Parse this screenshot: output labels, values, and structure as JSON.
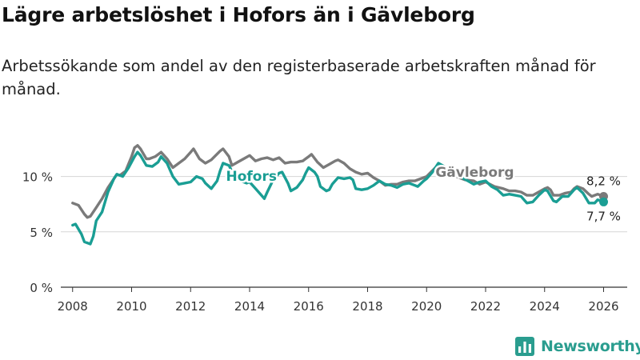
{
  "header": {
    "title": "Lägre arbetslöshet i Hofors än i Gävleborg",
    "subtitle": "Arbetssökande som andel av den registerbaserade arbetskraften månad för månad."
  },
  "brand": {
    "name": "Newsworthy"
  },
  "colors": {
    "hofors": "#1a9e94",
    "gavleborg": "#7a7a7a",
    "brand": "#2a9d8f",
    "grid": "#d6d6d6"
  },
  "chart_data": {
    "type": "line",
    "title": "Lägre arbetslöshet i Hofors än i Gävleborg",
    "xlabel": "",
    "ylabel": "",
    "xlim": [
      2007.6,
      2026.8
    ],
    "ylim": [
      0,
      12.5
    ],
    "x_ticks": [
      {
        "value": 2008,
        "label": "2008"
      },
      {
        "value": 2010,
        "label": "2010"
      },
      {
        "value": 2012,
        "label": "2012"
      },
      {
        "value": 2014,
        "label": "2014"
      },
      {
        "value": 2016,
        "label": "2016"
      },
      {
        "value": 2018,
        "label": "2018"
      },
      {
        "value": 2020,
        "label": "2020"
      },
      {
        "value": 2022,
        "label": "2022"
      },
      {
        "value": 2024,
        "label": "2024"
      },
      {
        "value": 2026,
        "label": "2026"
      }
    ],
    "y_ticks": [
      {
        "value": 0,
        "label": "0 %"
      },
      {
        "value": 5,
        "label": "5 %"
      },
      {
        "value": 10,
        "label": "10 %"
      }
    ],
    "series": [
      {
        "name": "Gävleborg",
        "key": "gavleborg",
        "end_label": "8,2 %",
        "points": [
          [
            2008.0,
            7.6
          ],
          [
            2008.2,
            7.4
          ],
          [
            2008.4,
            6.6
          ],
          [
            2008.5,
            6.3
          ],
          [
            2008.6,
            6.4
          ],
          [
            2008.8,
            7.2
          ],
          [
            2009.0,
            8.0
          ],
          [
            2009.2,
            9.0
          ],
          [
            2009.4,
            9.8
          ],
          [
            2009.5,
            10.2
          ],
          [
            2009.6,
            10.1
          ],
          [
            2009.8,
            10.5
          ],
          [
            2010.0,
            11.8
          ],
          [
            2010.1,
            12.6
          ],
          [
            2010.2,
            12.8
          ],
          [
            2010.3,
            12.5
          ],
          [
            2010.5,
            11.6
          ],
          [
            2010.6,
            11.6
          ],
          [
            2010.8,
            11.8
          ],
          [
            2011.0,
            12.2
          ],
          [
            2011.2,
            11.6
          ],
          [
            2011.4,
            10.8
          ],
          [
            2011.6,
            11.2
          ],
          [
            2011.8,
            11.6
          ],
          [
            2012.0,
            12.2
          ],
          [
            2012.1,
            12.5
          ],
          [
            2012.3,
            11.6
          ],
          [
            2012.5,
            11.2
          ],
          [
            2012.7,
            11.5
          ],
          [
            2013.0,
            12.3
          ],
          [
            2013.1,
            12.5
          ],
          [
            2013.3,
            11.8
          ],
          [
            2013.4,
            11.0
          ],
          [
            2013.6,
            11.3
          ],
          [
            2013.8,
            11.6
          ],
          [
            2014.0,
            11.9
          ],
          [
            2014.2,
            11.4
          ],
          [
            2014.4,
            11.6
          ],
          [
            2014.6,
            11.7
          ],
          [
            2014.8,
            11.5
          ],
          [
            2015.0,
            11.7
          ],
          [
            2015.2,
            11.2
          ],
          [
            2015.4,
            11.3
          ],
          [
            2015.6,
            11.3
          ],
          [
            2015.8,
            11.4
          ],
          [
            2016.0,
            11.8
          ],
          [
            2016.1,
            12.0
          ],
          [
            2016.3,
            11.3
          ],
          [
            2016.5,
            10.8
          ],
          [
            2016.7,
            11.1
          ],
          [
            2016.9,
            11.4
          ],
          [
            2017.0,
            11.5
          ],
          [
            2017.2,
            11.2
          ],
          [
            2017.4,
            10.7
          ],
          [
            2017.6,
            10.4
          ],
          [
            2017.8,
            10.2
          ],
          [
            2018.0,
            10.3
          ],
          [
            2018.2,
            9.9
          ],
          [
            2018.4,
            9.6
          ],
          [
            2018.6,
            9.2
          ],
          [
            2018.8,
            9.3
          ],
          [
            2019.0,
            9.3
          ],
          [
            2019.2,
            9.5
          ],
          [
            2019.4,
            9.6
          ],
          [
            2019.6,
            9.6
          ],
          [
            2019.8,
            9.8
          ],
          [
            2020.0,
            10.0
          ],
          [
            2020.3,
            10.8
          ],
          [
            2020.5,
            10.6
          ],
          [
            2020.8,
            10.3
          ],
          [
            2021.0,
            10.0
          ],
          [
            2021.3,
            9.7
          ],
          [
            2021.6,
            9.6
          ],
          [
            2021.8,
            9.3
          ],
          [
            2022.0,
            9.5
          ],
          [
            2022.3,
            9.1
          ],
          [
            2022.6,
            8.9
          ],
          [
            2022.8,
            8.7
          ],
          [
            2023.0,
            8.7
          ],
          [
            2023.2,
            8.6
          ],
          [
            2023.4,
            8.3
          ],
          [
            2023.6,
            8.3
          ],
          [
            2023.8,
            8.6
          ],
          [
            2024.0,
            8.9
          ],
          [
            2024.1,
            9.0
          ],
          [
            2024.2,
            8.8
          ],
          [
            2024.3,
            8.3
          ],
          [
            2024.5,
            8.3
          ],
          [
            2024.7,
            8.5
          ],
          [
            2024.9,
            8.6
          ],
          [
            2025.0,
            8.9
          ],
          [
            2025.1,
            9.1
          ],
          [
            2025.3,
            8.9
          ],
          [
            2025.5,
            8.4
          ],
          [
            2025.6,
            8.2
          ],
          [
            2025.8,
            8.4
          ],
          [
            2026.0,
            8.2
          ]
        ]
      },
      {
        "name": "Hofors",
        "key": "hofors",
        "end_label": "7,7 %",
        "points": [
          [
            2008.0,
            5.6
          ],
          [
            2008.1,
            5.7
          ],
          [
            2008.3,
            4.8
          ],
          [
            2008.4,
            4.1
          ],
          [
            2008.6,
            3.9
          ],
          [
            2008.7,
            4.6
          ],
          [
            2008.8,
            6.0
          ],
          [
            2009.0,
            6.8
          ],
          [
            2009.2,
            8.6
          ],
          [
            2009.4,
            9.8
          ],
          [
            2009.5,
            10.2
          ],
          [
            2009.7,
            10.0
          ],
          [
            2009.9,
            10.8
          ],
          [
            2010.1,
            11.8
          ],
          [
            2010.2,
            12.2
          ],
          [
            2010.3,
            11.9
          ],
          [
            2010.5,
            11.0
          ],
          [
            2010.7,
            10.9
          ],
          [
            2010.9,
            11.3
          ],
          [
            2011.0,
            11.8
          ],
          [
            2011.2,
            11.2
          ],
          [
            2011.4,
            10.0
          ],
          [
            2011.6,
            9.3
          ],
          [
            2011.8,
            9.4
          ],
          [
            2012.0,
            9.5
          ],
          [
            2012.2,
            10.0
          ],
          [
            2012.4,
            9.8
          ],
          [
            2012.5,
            9.4
          ],
          [
            2012.7,
            8.9
          ],
          [
            2012.9,
            9.6
          ],
          [
            2013.0,
            10.5
          ],
          [
            2013.1,
            11.2
          ],
          [
            2013.3,
            11.0
          ],
          [
            2013.5,
            9.9
          ],
          [
            2013.7,
            9.6
          ],
          [
            2013.9,
            9.4
          ],
          [
            2014.0,
            9.5
          ],
          [
            2014.2,
            8.9
          ],
          [
            2014.4,
            8.3
          ],
          [
            2014.5,
            8.0
          ],
          [
            2014.6,
            8.6
          ],
          [
            2014.8,
            9.7
          ],
          [
            2015.0,
            10.3
          ],
          [
            2015.1,
            10.4
          ],
          [
            2015.3,
            9.4
          ],
          [
            2015.4,
            8.7
          ],
          [
            2015.6,
            9.0
          ],
          [
            2015.8,
            9.7
          ],
          [
            2015.9,
            10.3
          ],
          [
            2016.0,
            10.8
          ],
          [
            2016.2,
            10.4
          ],
          [
            2016.3,
            10.0
          ],
          [
            2016.4,
            9.1
          ],
          [
            2016.6,
            8.7
          ],
          [
            2016.7,
            8.8
          ],
          [
            2016.8,
            9.3
          ],
          [
            2017.0,
            9.9
          ],
          [
            2017.2,
            9.8
          ],
          [
            2017.4,
            9.9
          ],
          [
            2017.5,
            9.7
          ],
          [
            2017.6,
            8.9
          ],
          [
            2017.8,
            8.8
          ],
          [
            2018.0,
            8.9
          ],
          [
            2018.2,
            9.2
          ],
          [
            2018.4,
            9.6
          ],
          [
            2018.6,
            9.3
          ],
          [
            2018.8,
            9.2
          ],
          [
            2019.0,
            9.0
          ],
          [
            2019.2,
            9.3
          ],
          [
            2019.4,
            9.4
          ],
          [
            2019.6,
            9.2
          ],
          [
            2019.7,
            9.1
          ],
          [
            2019.9,
            9.6
          ],
          [
            2020.0,
            9.8
          ],
          [
            2020.2,
            10.4
          ],
          [
            2020.4,
            11.2
          ],
          [
            2020.6,
            10.9
          ],
          [
            2020.8,
            10.4
          ],
          [
            2021.0,
            10.2
          ],
          [
            2021.2,
            9.9
          ],
          [
            2021.4,
            9.6
          ],
          [
            2021.6,
            9.3
          ],
          [
            2021.8,
            9.5
          ],
          [
            2022.0,
            9.6
          ],
          [
            2022.2,
            9.1
          ],
          [
            2022.4,
            8.8
          ],
          [
            2022.6,
            8.3
          ],
          [
            2022.8,
            8.4
          ],
          [
            2023.0,
            8.3
          ],
          [
            2023.2,
            8.2
          ],
          [
            2023.4,
            7.6
          ],
          [
            2023.6,
            7.7
          ],
          [
            2023.8,
            8.3
          ],
          [
            2024.0,
            8.8
          ],
          [
            2024.1,
            8.7
          ],
          [
            2024.3,
            7.8
          ],
          [
            2024.4,
            7.7
          ],
          [
            2024.6,
            8.2
          ],
          [
            2024.8,
            8.2
          ],
          [
            2025.0,
            8.8
          ],
          [
            2025.1,
            9.0
          ],
          [
            2025.3,
            8.5
          ],
          [
            2025.5,
            7.6
          ],
          [
            2025.7,
            7.6
          ],
          [
            2025.8,
            7.9
          ],
          [
            2026.0,
            7.7
          ]
        ]
      }
    ],
    "annotations": [
      {
        "text": "Hofors",
        "series": "hofors",
        "x": 2013.2,
        "y": 10.05
      },
      {
        "text": "Gävleborg",
        "series": "gavleborg",
        "x": 2020.3,
        "y": 10.4
      }
    ]
  }
}
